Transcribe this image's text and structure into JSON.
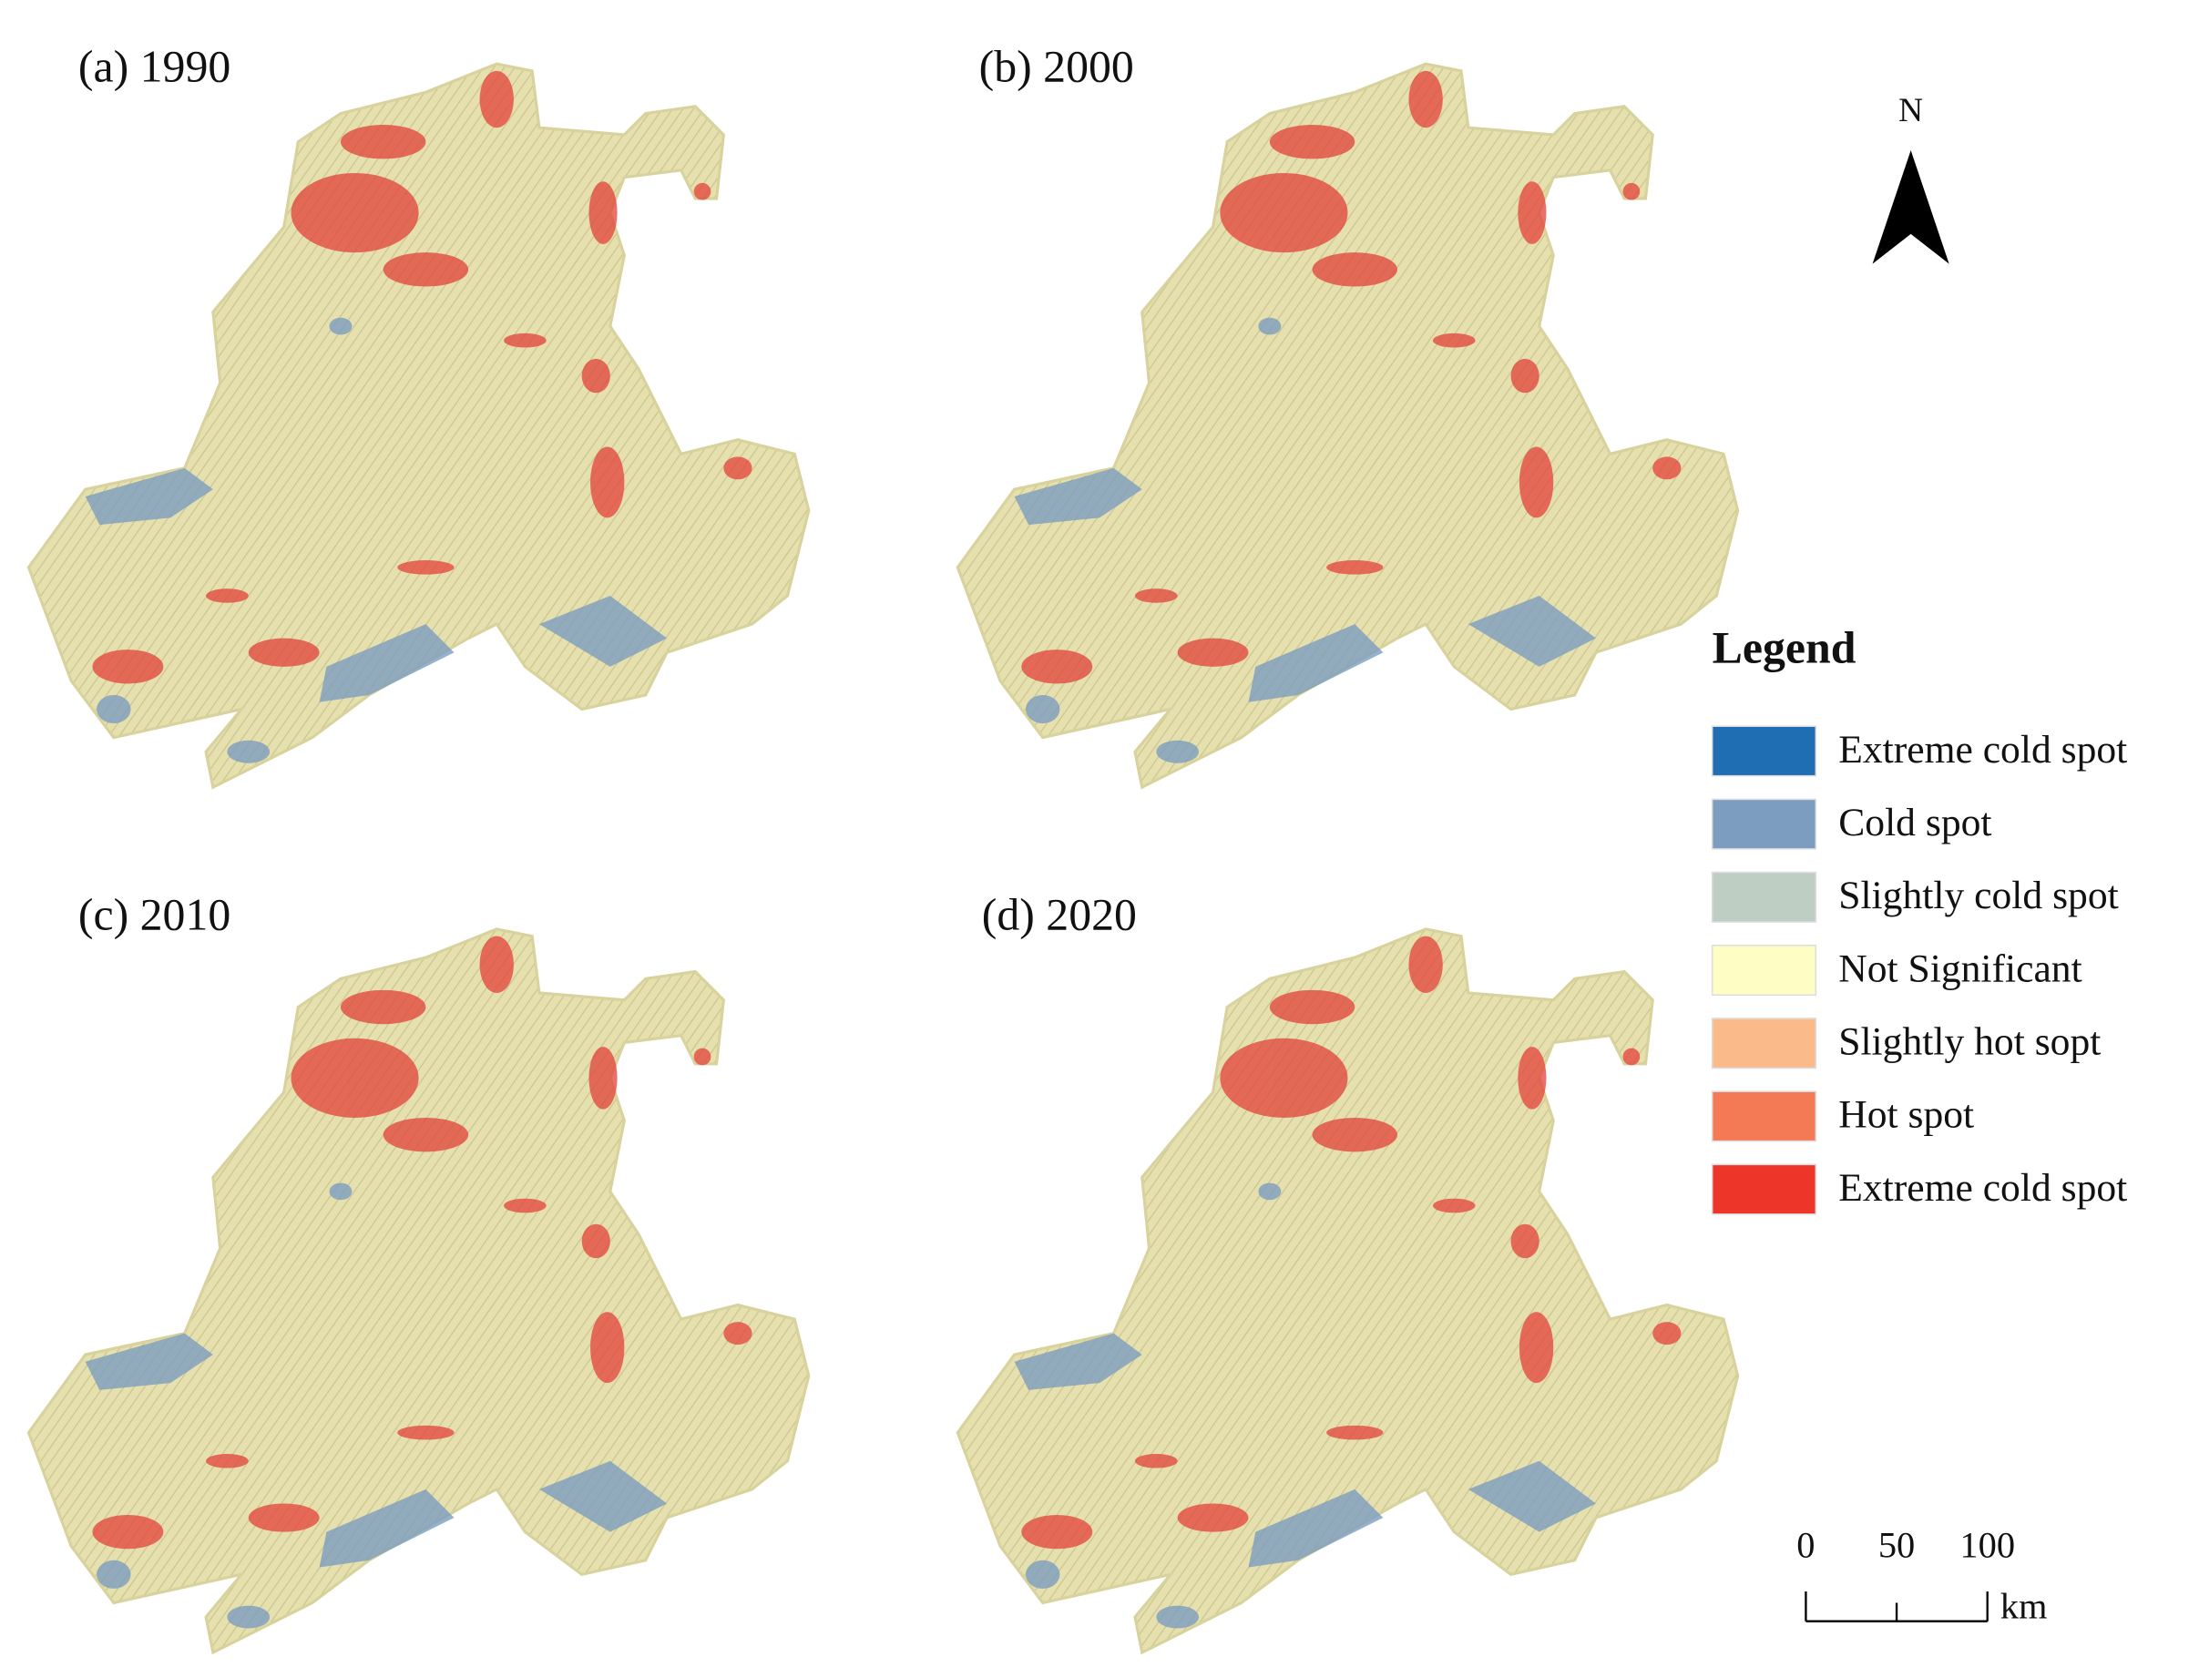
{
  "panels": [
    {
      "label": "(a) 1990"
    },
    {
      "label": "(b) 2000"
    },
    {
      "label": "(c) 2010"
    },
    {
      "label": "(d) 2020"
    }
  ],
  "north_arrow": {
    "label": "N"
  },
  "legend": {
    "title": "Legend",
    "items": [
      {
        "label": "Extreme cold spot",
        "color": "#1f6db3"
      },
      {
        "label": "Cold spot",
        "color": "#7c9dc0"
      },
      {
        "label": "Slightly cold spot",
        "color": "#bfcec3"
      },
      {
        "label": "Not Significant",
        "color": "#fdfdc4"
      },
      {
        "label": "Slightly hot sopt",
        "color": "#fbba8a"
      },
      {
        "label": "Hot spot",
        "color": "#f47a55"
      },
      {
        "label": "Extreme cold spot",
        "color": "#ee3529"
      }
    ]
  },
  "scale_bar": {
    "ticks": [
      "0",
      "50",
      "100"
    ],
    "unit": "km"
  }
}
